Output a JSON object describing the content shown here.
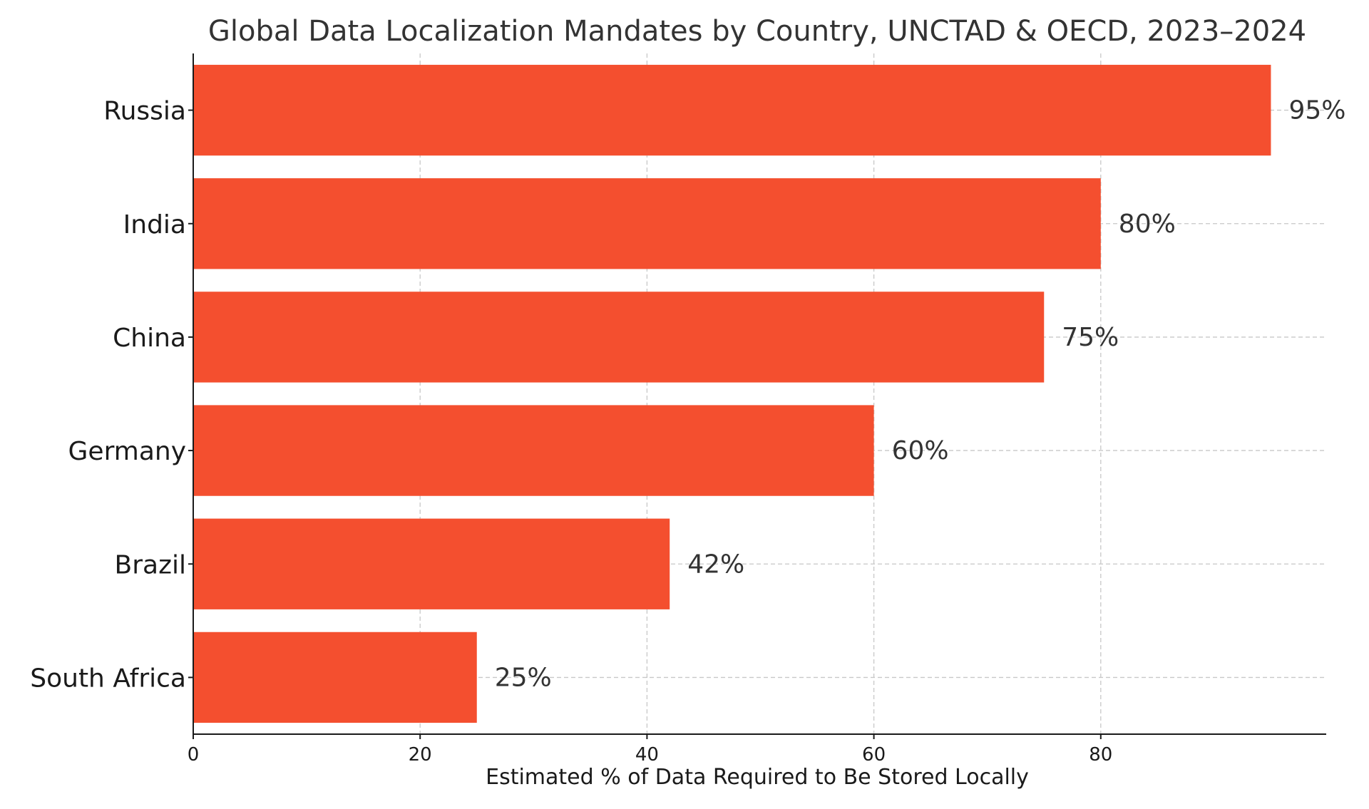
{
  "chart_data": {
    "type": "bar",
    "orientation": "horizontal",
    "title": "Global Data Localization Mandates by Country, UNCTAD & OECD, 2023–2024",
    "xlabel": "Estimated % of Data Required to Be Stored Locally",
    "ylabel": "",
    "categories": [
      "Russia",
      "India",
      "China",
      "Germany",
      "Brazil",
      "South Africa"
    ],
    "values": [
      95,
      80,
      75,
      60,
      42,
      25
    ],
    "data_labels": [
      "95%",
      "80%",
      "75%",
      "60%",
      "42%",
      "25%"
    ],
    "xlim": [
      0,
      100
    ],
    "xticks": [
      0,
      20,
      40,
      60,
      80
    ],
    "xtick_labels": [
      "0",
      "20",
      "40",
      "60",
      "80"
    ],
    "grid": true,
    "bar_color": "#f44f2f"
  }
}
